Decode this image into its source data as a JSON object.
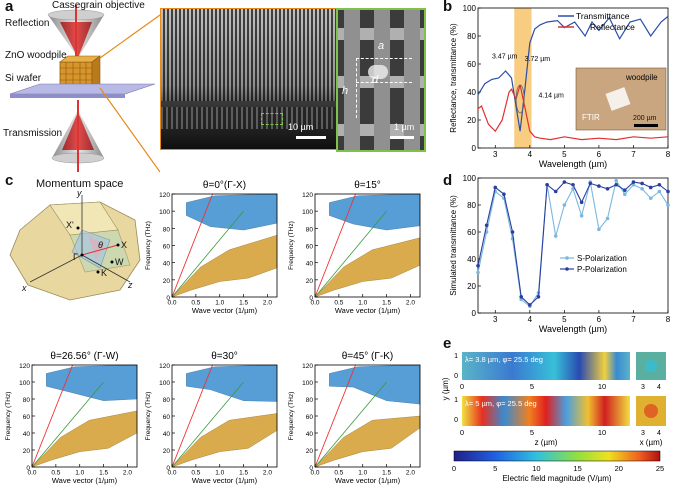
{
  "panels": {
    "a": {
      "label": "a",
      "schematic": {
        "objective": "Cassegrain objective",
        "reflection": "Reflection",
        "woodpile": "ZnO woodpile",
        "wafer": "Si  wafer",
        "transmission": "Transmission"
      },
      "sem": {
        "scale_left": "10 µm",
        "scale_right": "1 µm",
        "dim_a": "a",
        "dim_d": "d",
        "dim_h": "h"
      }
    },
    "b": {
      "label": "b",
      "ylabel": "Reflectance, transmittance (%)",
      "xlabel": "Wavelength (µm)",
      "legend_t": "Transmittance",
      "legend_r": "Reflectance",
      "ann1": "3.47 µm",
      "ann2": "3.72 µm",
      "ann3": "4.14 µm",
      "inset_woodpile": "woodpile",
      "inset_ftir": "FTIR",
      "inset_scale": "200 µm",
      "xticks": [
        "3",
        "4",
        "5",
        "6",
        "7",
        "8"
      ],
      "yticks": [
        "0",
        "20",
        "40",
        "60",
        "80",
        "100"
      ],
      "colors": {
        "transmittance": "#2b4fa8",
        "reflectance": "#e03030",
        "band": "#f6c062"
      }
    },
    "c": {
      "label": "c",
      "bz_title": "Momentum space",
      "bz_points": {
        "y": "y",
        "x": "x",
        "z": "z",
        "X": "X",
        "W": "W",
        "K": "K",
        "G": "Γ",
        "theta": "θ",
        "Xp": "X'"
      },
      "plots": [
        {
          "title": "θ=0°(Γ-X)"
        },
        {
          "title": "θ=15°"
        },
        {
          "title": "θ=26.56° (Γ-W)"
        },
        {
          "title": "θ=30°"
        },
        {
          "title": "θ=45° (Γ-K)"
        }
      ],
      "ylabel": "Frequency (THz)",
      "xlabel": "Wave vector (1/µm)",
      "yticks": [
        "0",
        "20",
        "40",
        "60",
        "80",
        "100",
        "120"
      ],
      "xticks": [
        "0.0",
        "0.5",
        "1.0",
        "1.5",
        "2.0"
      ]
    },
    "d": {
      "label": "d",
      "ylabel": "Simulated transmittance (%)",
      "xlabel": "Wavelength (µm)",
      "legend_s": "S-Polarization",
      "legend_p": "P-Polarization",
      "xticks": [
        "3",
        "4",
        "5",
        "6",
        "7",
        "8"
      ],
      "yticks": [
        "0",
        "20",
        "40",
        "60",
        "80",
        "100"
      ]
    },
    "e": {
      "label": "e",
      "row1": "λ= 3.8 µm, φ= 25.5 deg",
      "row2": "λ= 5 µm, φ= 25.5 deg",
      "xlabel": "z (µm)",
      "xlabel2": "x (µm)",
      "ylabel": "y (µm)",
      "xticks": [
        "0",
        "5",
        "10"
      ],
      "xticks2": [
        "3",
        "4"
      ],
      "yticks": [
        "1",
        "0"
      ],
      "cbar_label": "Electric field magnitude (V/µm)",
      "cbar_ticks": [
        "0",
        "5",
        "10",
        "15",
        "20",
        "25"
      ]
    }
  },
  "chart_data": [
    {
      "type": "line",
      "title": "b",
      "xlabel": "Wavelength (µm)",
      "ylabel": "Reflectance, transmittance (%)",
      "xlim": [
        2.5,
        8
      ],
      "ylim": [
        0,
        100
      ],
      "series": [
        {
          "name": "Transmittance",
          "x": [
            2.5,
            2.7,
            2.9,
            3.1,
            3.3,
            3.47,
            3.6,
            3.72,
            3.85,
            4.0,
            4.14,
            4.3,
            4.5,
            4.8,
            5.0,
            5.3,
            5.6,
            5.8,
            6.0,
            6.3,
            6.6,
            6.9,
            7.2,
            7.5,
            7.8,
            8.0
          ],
          "y": [
            38,
            46,
            49,
            50,
            55,
            50,
            30,
            12,
            40,
            75,
            85,
            88,
            90,
            91,
            86,
            90,
            80,
            90,
            84,
            93,
            78,
            90,
            92,
            80,
            90,
            94
          ]
        },
        {
          "name": "Reflectance",
          "x": [
            2.5,
            2.6,
            2.8,
            3.0,
            3.2,
            3.4,
            3.47,
            3.6,
            3.72,
            3.85,
            4.0,
            4.14,
            4.3,
            4.6,
            5.0,
            5.5,
            6.0,
            6.5,
            7.0,
            7.5,
            8.0
          ],
          "y": [
            28,
            30,
            17,
            12,
            20,
            40,
            42,
            35,
            45,
            30,
            12,
            8,
            7,
            6,
            8,
            6,
            7,
            6,
            8,
            7,
            8
          ]
        }
      ]
    },
    {
      "type": "line",
      "title": "d",
      "xlabel": "Wavelength (µm)",
      "ylabel": "Simulated transmittance (%)",
      "xlim": [
        2.5,
        8
      ],
      "ylim": [
        0,
        100
      ],
      "series": [
        {
          "name": "S-Polarization",
          "x": [
            2.5,
            2.75,
            3.0,
            3.25,
            3.5,
            3.75,
            4.0,
            4.25,
            4.5,
            4.75,
            5.0,
            5.25,
            5.5,
            5.75,
            6.0,
            6.25,
            6.5,
            6.75,
            7.0,
            7.25,
            7.5,
            7.75,
            8.0
          ],
          "y": [
            30,
            60,
            90,
            85,
            55,
            10,
            5,
            15,
            95,
            57,
            80,
            92,
            72,
            97,
            62,
            70,
            98,
            88,
            95,
            92,
            85,
            90,
            80
          ]
        },
        {
          "name": "P-Polarization",
          "x": [
            2.5,
            2.75,
            3.0,
            3.25,
            3.5,
            3.75,
            4.0,
            4.25,
            4.5,
            4.75,
            5.0,
            5.25,
            5.5,
            5.75,
            6.0,
            6.25,
            6.5,
            6.75,
            7.0,
            7.25,
            7.5,
            7.75,
            8.0
          ],
          "y": [
            35,
            65,
            93,
            88,
            60,
            12,
            6,
            12,
            95,
            90,
            97,
            95,
            82,
            96,
            94,
            92,
            95,
            91,
            97,
            96,
            93,
            95,
            90
          ]
        }
      ]
    },
    {
      "type": "heatmap",
      "title": "e",
      "xlabel": "z (µm)",
      "ylabel": "y (µm)",
      "colorbar_range": [
        0,
        25
      ]
    }
  ]
}
